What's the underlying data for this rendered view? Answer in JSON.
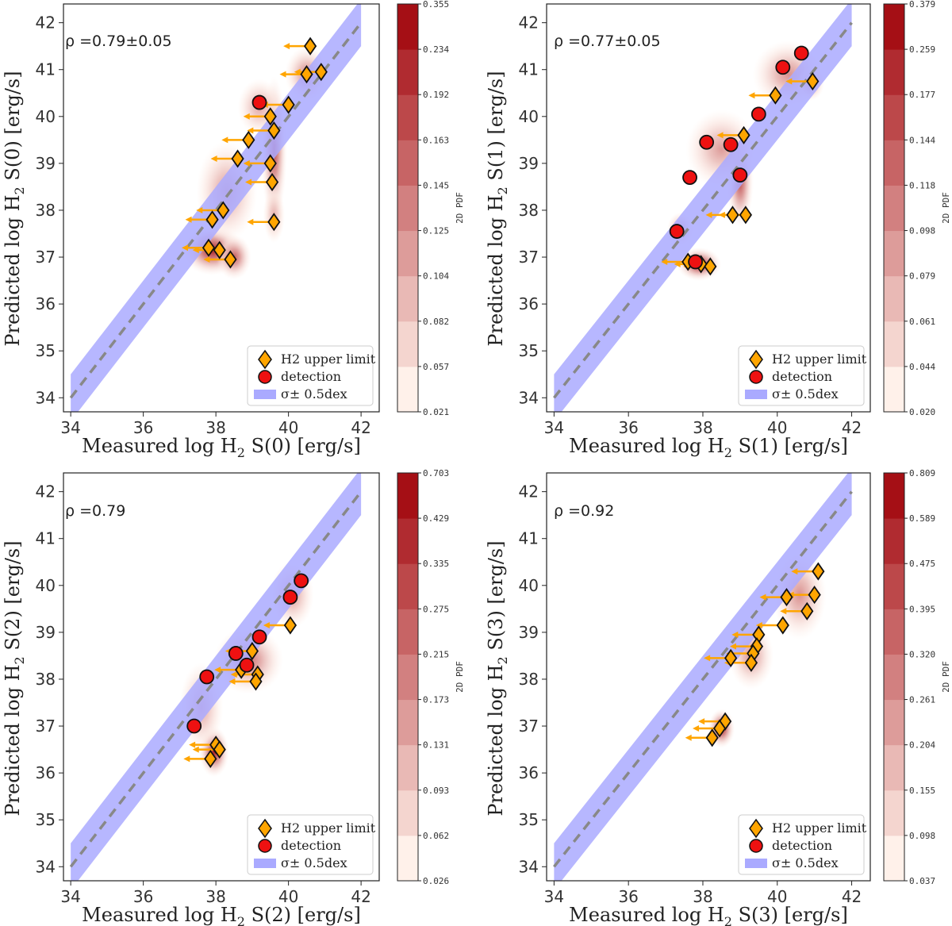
{
  "legend": {
    "upper_limit_label": "H2 upper limit",
    "detection_label": "detection",
    "band_label": "σ± 0.5dex"
  },
  "colors": {
    "band": "#aaaaff",
    "one_to_one": "#888888",
    "upper_limit_fill": "#ffa500",
    "upper_limit_arrow": "#ffa500",
    "detection_fill": "#ee1111",
    "cbar_min": "#fff1ea",
    "cbar_max": "#a50f15"
  },
  "chart_data": [
    {
      "type": "scatter",
      "panel": "S0",
      "xlabel_pre": "Measured log H",
      "xlabel_sub": "2",
      "xlabel_post": " S(0) [erg/s]",
      "ylabel_pre": "Predicted log H",
      "ylabel_sub": "2",
      "ylabel_post": " S(0) [erg/s]",
      "rho": "ρ =0.79±0.05",
      "xlim": [
        33.8,
        42.5
      ],
      "ylim": [
        33.7,
        42.4
      ],
      "x_ticks": [
        "34",
        "36",
        "38",
        "40",
        "42"
      ],
      "y_ticks": [
        "34",
        "35",
        "36",
        "37",
        "38",
        "39",
        "40",
        "41",
        "42"
      ],
      "band_dex": 0.5,
      "cbar_label": "2D PDF",
      "cbar_ticks": [
        "0.021",
        "0.057",
        "0.082",
        "0.104",
        "0.125",
        "0.145",
        "0.163",
        "0.192",
        "0.234",
        "0.355"
      ],
      "detections": [
        [
          39.2,
          40.3
        ]
      ],
      "upper_limits": [
        [
          40.6,
          41.5
        ],
        [
          40.5,
          40.9
        ],
        [
          40.9,
          40.95
        ],
        [
          40.0,
          40.25
        ],
        [
          39.5,
          40.0
        ],
        [
          39.6,
          39.7
        ],
        [
          38.9,
          39.5
        ],
        [
          38.6,
          39.1
        ],
        [
          39.5,
          39.0
        ],
        [
          39.55,
          38.6
        ],
        [
          38.2,
          38.0
        ],
        [
          37.9,
          37.8
        ],
        [
          37.8,
          37.2
        ],
        [
          38.1,
          37.15
        ],
        [
          38.4,
          36.95
        ],
        [
          39.6,
          37.75
        ]
      ],
      "kde": [
        [
          37.9,
          37.15,
          0.7,
          0.45,
          1.0
        ],
        [
          38.5,
          37.0,
          0.4,
          0.4,
          0.7
        ],
        [
          39.6,
          39.3,
          0.3,
          1.3,
          0.8
        ],
        [
          40.5,
          40.9,
          0.5,
          0.5,
          0.5
        ],
        [
          39.2,
          40.2,
          0.5,
          0.5,
          0.35
        ],
        [
          38.3,
          38.4,
          0.7,
          0.9,
          0.4
        ],
        [
          39.6,
          37.9,
          0.25,
          0.5,
          0.3
        ]
      ]
    },
    {
      "type": "scatter",
      "panel": "S1",
      "xlabel_pre": "Measured log H",
      "xlabel_sub": "2",
      "xlabel_post": " S(1) [erg/s]",
      "ylabel_pre": "Predicted log H",
      "ylabel_sub": "2",
      "ylabel_post": " S(1) [erg/s]",
      "rho": "ρ =0.77±0.05",
      "xlim": [
        33.8,
        42.5
      ],
      "ylim": [
        33.7,
        42.4
      ],
      "x_ticks": [
        "34",
        "36",
        "38",
        "40",
        "42"
      ],
      "y_ticks": [
        "34",
        "35",
        "36",
        "37",
        "38",
        "39",
        "40",
        "41",
        "42"
      ],
      "band_dex": 0.5,
      "cbar_label": "2D PDF",
      "cbar_ticks": [
        "0.020",
        "0.044",
        "0.061",
        "0.079",
        "0.098",
        "0.118",
        "0.144",
        "0.177",
        "0.259",
        "0.379"
      ],
      "detections": [
        [
          40.65,
          41.35
        ],
        [
          40.15,
          41.05
        ],
        [
          39.5,
          40.05
        ],
        [
          38.1,
          39.45
        ],
        [
          38.75,
          39.4
        ],
        [
          37.65,
          38.7
        ],
        [
          39.0,
          38.75
        ],
        [
          37.3,
          37.55
        ],
        [
          37.8,
          36.9
        ]
      ],
      "upper_limits": [
        [
          40.95,
          40.75
        ],
        [
          39.95,
          40.45
        ],
        [
          39.1,
          39.6
        ],
        [
          38.8,
          37.9
        ],
        [
          39.15,
          37.9
        ],
        [
          37.6,
          36.9
        ],
        [
          37.95,
          36.85
        ],
        [
          38.2,
          36.8
        ]
      ],
      "kde": [
        [
          37.9,
          36.85,
          0.5,
          0.3,
          1.0
        ],
        [
          39.0,
          38.6,
          0.3,
          0.8,
          0.75
        ],
        [
          38.5,
          39.3,
          0.8,
          0.7,
          0.4
        ],
        [
          40.3,
          40.9,
          0.8,
          0.6,
          0.45
        ],
        [
          37.4,
          37.6,
          0.3,
          0.3,
          0.4
        ],
        [
          40.9,
          40.7,
          0.3,
          0.3,
          0.4
        ]
      ]
    },
    {
      "type": "scatter",
      "panel": "S2",
      "xlabel_pre": "Measured log H",
      "xlabel_sub": "2",
      "xlabel_post": " S(2) [erg/s]",
      "ylabel_pre": "Predicted log H",
      "ylabel_sub": "2",
      "ylabel_post": " S(2) [erg/s]",
      "rho": "ρ =0.79",
      "xlim": [
        33.8,
        42.5
      ],
      "ylim": [
        33.7,
        42.4
      ],
      "x_ticks": [
        "34",
        "36",
        "38",
        "40",
        "42"
      ],
      "y_ticks": [
        "34",
        "35",
        "36",
        "37",
        "38",
        "39",
        "40",
        "41",
        "42"
      ],
      "band_dex": 0.5,
      "cbar_label": "2D PDF",
      "cbar_ticks": [
        "0.026",
        "0.062",
        "0.093",
        "0.131",
        "0.173",
        "0.215",
        "0.275",
        "0.335",
        "0.429",
        "0.703"
      ],
      "detections": [
        [
          40.35,
          40.1
        ],
        [
          40.05,
          39.75
        ],
        [
          39.2,
          38.9
        ],
        [
          38.85,
          38.3
        ],
        [
          38.55,
          38.55
        ],
        [
          37.75,
          38.05
        ],
        [
          37.4,
          37.0
        ]
      ],
      "upper_limits": [
        [
          40.05,
          39.15
        ],
        [
          39.0,
          38.6
        ],
        [
          38.7,
          38.2
        ],
        [
          39.15,
          38.1
        ],
        [
          39.1,
          37.95
        ],
        [
          38.0,
          36.6
        ],
        [
          38.1,
          36.5
        ],
        [
          37.85,
          36.3
        ]
      ],
      "kde": [
        [
          37.95,
          36.45,
          0.35,
          0.45,
          1.0
        ],
        [
          38.9,
          38.4,
          0.8,
          0.6,
          0.6
        ],
        [
          40.1,
          39.8,
          0.5,
          0.6,
          0.4
        ],
        [
          37.6,
          37.4,
          0.5,
          0.8,
          0.35
        ]
      ]
    },
    {
      "type": "scatter",
      "panel": "S3",
      "xlabel_pre": "Measured log H",
      "xlabel_sub": "2",
      "xlabel_post": " S(3) [erg/s]",
      "ylabel_pre": "Predicted log H",
      "ylabel_sub": "2",
      "ylabel_post": " S(3) [erg/s]",
      "rho": "ρ =0.92",
      "xlim": [
        33.8,
        42.5
      ],
      "ylim": [
        33.7,
        42.4
      ],
      "x_ticks": [
        "34",
        "36",
        "38",
        "40",
        "42"
      ],
      "y_ticks": [
        "34",
        "35",
        "36",
        "37",
        "38",
        "39",
        "40",
        "41",
        "42"
      ],
      "band_dex": 0.5,
      "cbar_label": "2D PDF",
      "cbar_ticks": [
        "0.037",
        "0.098",
        "0.155",
        "0.204",
        "0.261",
        "0.320",
        "0.395",
        "0.475",
        "0.589",
        "0.809"
      ],
      "detections": [],
      "upper_limits": [
        [
          41.1,
          40.3
        ],
        [
          40.25,
          39.75
        ],
        [
          41.0,
          39.8
        ],
        [
          40.8,
          39.45
        ],
        [
          40.15,
          39.15
        ],
        [
          39.5,
          38.95
        ],
        [
          39.45,
          38.7
        ],
        [
          39.35,
          38.55
        ],
        [
          38.75,
          38.45
        ],
        [
          39.3,
          38.35
        ],
        [
          38.6,
          37.1
        ],
        [
          38.45,
          36.95
        ],
        [
          38.25,
          36.75
        ]
      ],
      "kde": [
        [
          38.5,
          36.95,
          0.3,
          0.35,
          1.0
        ],
        [
          39.3,
          38.5,
          0.5,
          0.6,
          0.45
        ],
        [
          40.6,
          39.8,
          0.6,
          0.8,
          0.45
        ]
      ]
    }
  ]
}
